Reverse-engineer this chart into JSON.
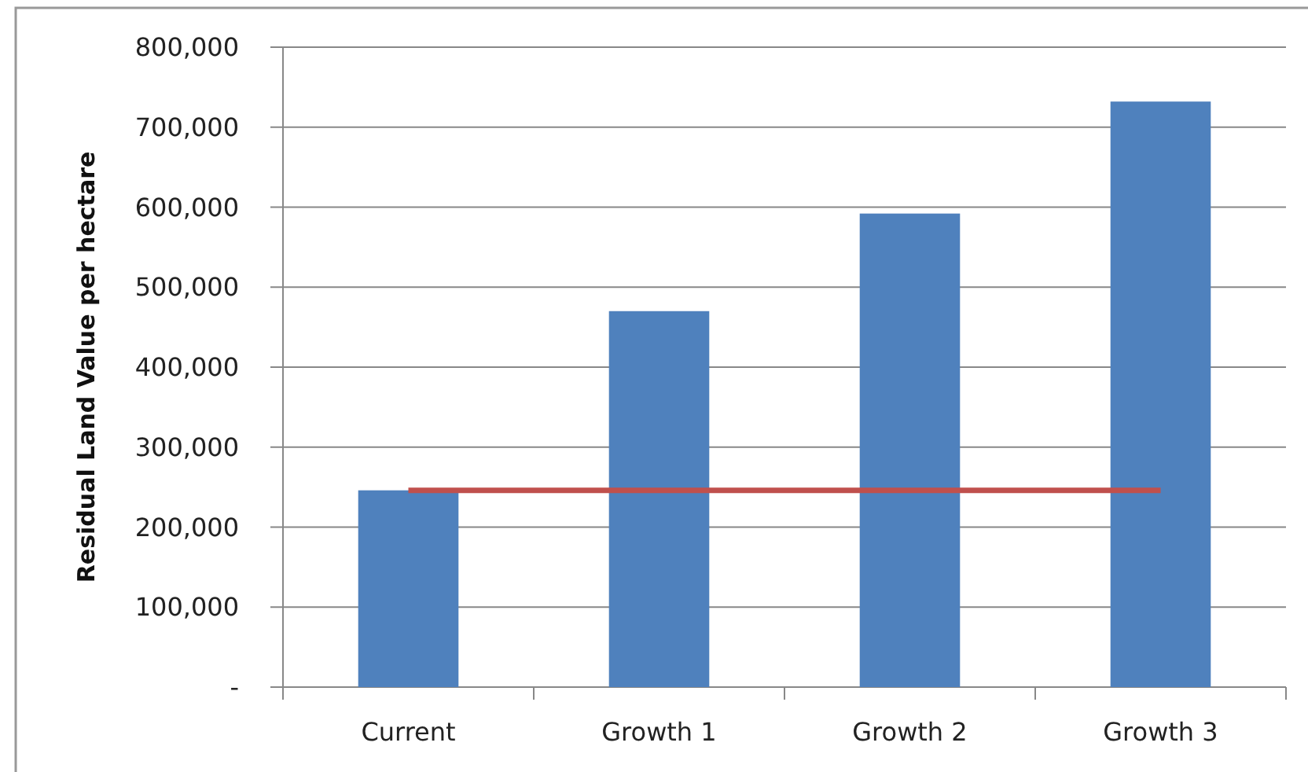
{
  "chart_data": {
    "type": "bar",
    "ylabel": "Residual Land Value per hectare",
    "categories": [
      "Current",
      "Growth 1",
      "Growth 2",
      "Growth 3"
    ],
    "series": [
      {
        "color": "#4f81bd",
        "values": [
          246000,
          470000,
          592000,
          732000
        ]
      },
      {
        "type": "line",
        "color": "#c0504d",
        "values": [
          246000,
          246000,
          246000,
          246000
        ]
      }
    ],
    "ylim": [
      0,
      800000
    ],
    "yticks": [
      {
        "value": 0,
        "label": "-"
      },
      {
        "value": 100000,
        "label": "100,000"
      },
      {
        "value": 200000,
        "label": "200,000"
      },
      {
        "value": 300000,
        "label": "300,000"
      },
      {
        "value": 400000,
        "label": "400,000"
      },
      {
        "value": 500000,
        "label": "500,000"
      },
      {
        "value": 600000,
        "label": "600,000"
      },
      {
        "value": 700000,
        "label": "700,000"
      },
      {
        "value": 800000,
        "label": "800,000"
      }
    ],
    "grid": "y",
    "marker": "none",
    "line_style": "solid"
  }
}
